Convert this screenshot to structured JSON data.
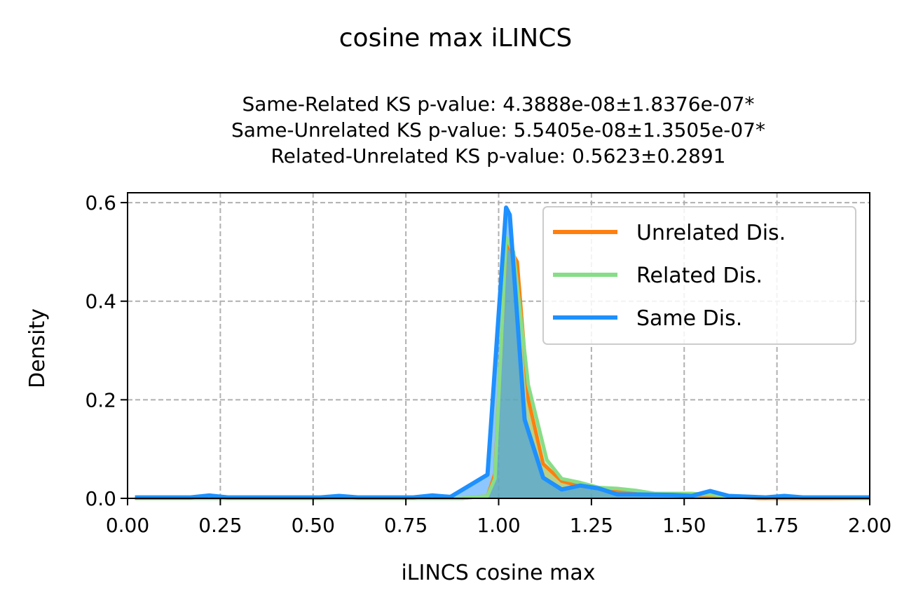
{
  "chart_data": {
    "type": "area",
    "title": "cosine max iLINCS",
    "subtitle_lines": [
      "Same-Related KS p-value: 4.3888e-08±1.8376e-07*",
      "Same-Unrelated KS p-value: 5.5405e-08±1.3505e-07*",
      "Related-Unrelated KS p-value: 0.5623±0.2891"
    ],
    "xlabel": "iLINCS cosine max",
    "ylabel": "Density",
    "xlim": [
      0.0,
      2.0
    ],
    "ylim": [
      0.0,
      0.62
    ],
    "xticks": [
      0.0,
      0.25,
      0.5,
      0.75,
      1.0,
      1.25,
      1.5,
      1.75,
      2.0
    ],
    "xtick_labels": [
      "0.00",
      "0.25",
      "0.50",
      "0.75",
      "1.00",
      "1.25",
      "1.50",
      "1.75",
      "2.00"
    ],
    "yticks": [
      0.0,
      0.2,
      0.4,
      0.6
    ],
    "ytick_labels": [
      "0.0",
      "0.2",
      "0.4",
      "0.6"
    ],
    "grid": true,
    "legend_position": "top-right",
    "series": [
      {
        "name": "Unrelated Dis.",
        "color": "#ff7f0e",
        "x": [
          0.02,
          0.9,
          0.97,
          0.99,
          1.02,
          1.05,
          1.08,
          1.12,
          1.17,
          1.22,
          1.27,
          1.32,
          1.42,
          1.52,
          1.6,
          1.7,
          2.0
        ],
        "y": [
          0.0,
          0.0,
          0.005,
          0.05,
          0.52,
          0.48,
          0.2,
          0.07,
          0.035,
          0.025,
          0.02,
          0.015,
          0.01,
          0.008,
          0.005,
          0.0,
          0.0
        ]
      },
      {
        "name": "Related Dis.",
        "color": "#88dd88",
        "x": [
          0.02,
          0.9,
          0.97,
          0.99,
          1.02,
          1.04,
          1.08,
          1.13,
          1.17,
          1.22,
          1.27,
          1.32,
          1.37,
          1.42,
          1.52,
          1.6,
          1.7,
          2.0
        ],
        "y": [
          0.0,
          0.0,
          0.005,
          0.04,
          0.53,
          0.5,
          0.23,
          0.078,
          0.04,
          0.032,
          0.022,
          0.02,
          0.016,
          0.01,
          0.01,
          0.006,
          0.002,
          0.0
        ]
      },
      {
        "name": "Same Dis.",
        "color": "#1e90ff",
        "x": [
          0.02,
          0.17,
          0.22,
          0.27,
          0.52,
          0.57,
          0.62,
          0.77,
          0.82,
          0.87,
          0.97,
          1.02,
          1.03,
          1.07,
          1.12,
          1.17,
          1.22,
          1.27,
          1.32,
          1.37,
          1.47,
          1.52,
          1.57,
          1.62,
          1.72,
          1.77,
          1.82,
          2.0
        ],
        "y": [
          0.002,
          0.002,
          0.006,
          0.002,
          0.002,
          0.005,
          0.002,
          0.002,
          0.006,
          0.003,
          0.048,
          0.59,
          0.575,
          0.16,
          0.042,
          0.018,
          0.026,
          0.02,
          0.008,
          0.008,
          0.007,
          0.005,
          0.015,
          0.005,
          0.002,
          0.005,
          0.002,
          0.002
        ]
      }
    ]
  }
}
